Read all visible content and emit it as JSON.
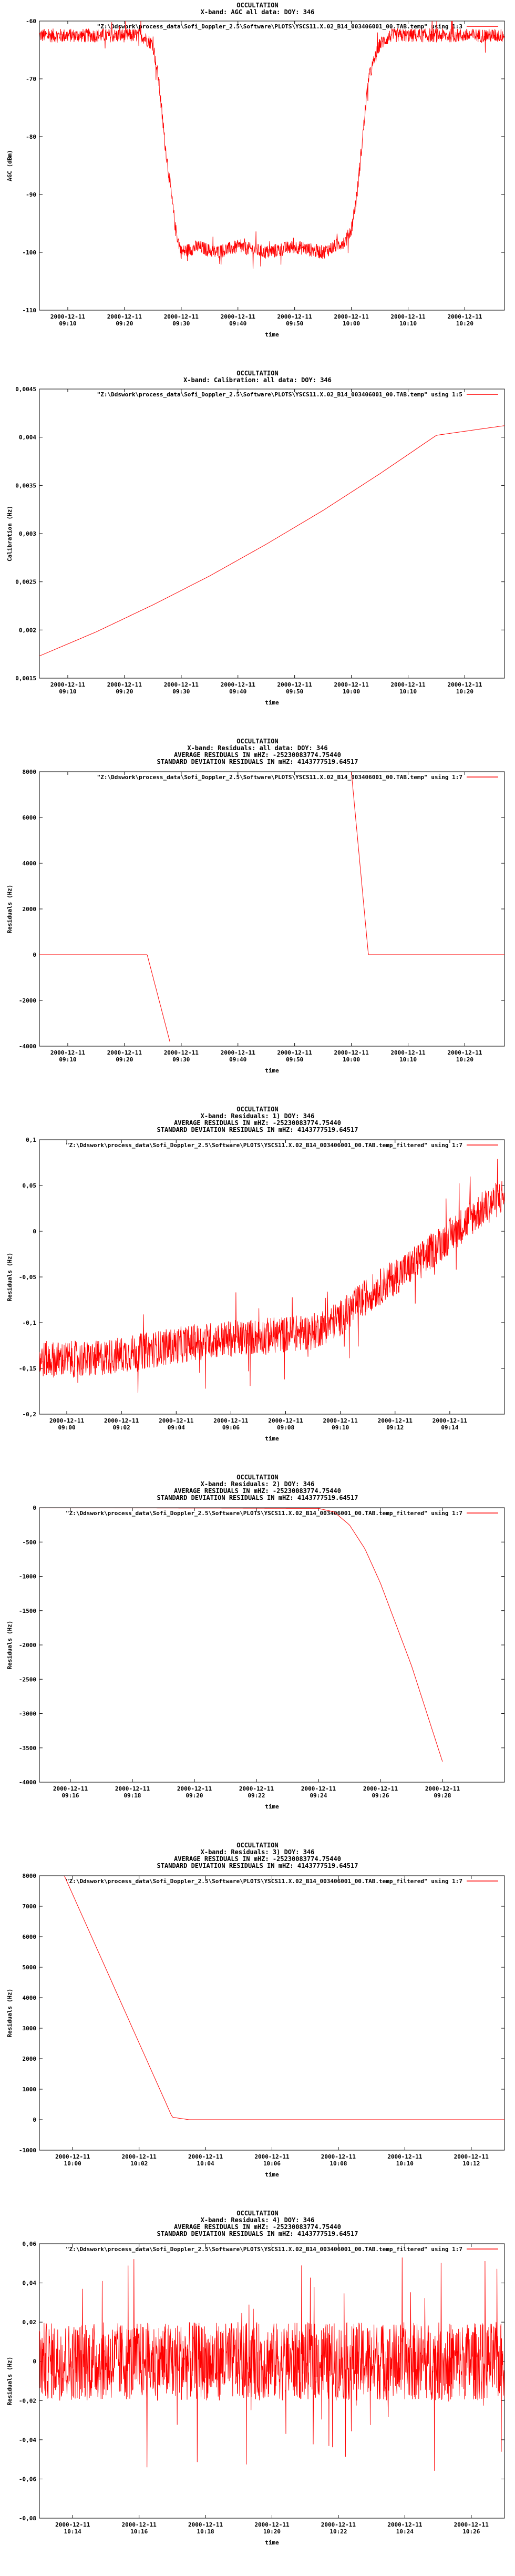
{
  "chart_data": [
    {
      "type": "line",
      "title": [
        "OCCULTATION",
        "X-band: AGC all data: DOY: 346"
      ],
      "legend": "\"Z:\\Ddswork\\process_data\\Sofi_Doppler_2.5\\Software\\PLOTS\\YSCS11.X.02_B14_003406001_00.TAB.temp\" using 1:3",
      "legend_position": "top-right",
      "xlabel": "time",
      "ylabel": "AGC (dBm)",
      "ylim": [
        -110,
        -60
      ],
      "yticks": [
        "-60",
        "-70",
        "-80",
        "-90",
        "-100",
        "-110"
      ],
      "xlim": [
        "2000-12-11 09:05",
        "2000-12-11 10:27"
      ],
      "xticks": [
        {
          "t": "09:10",
          "l1": "2000-12-11",
          "l2": "09:10"
        },
        {
          "t": "09:20",
          "l1": "2000-12-11",
          "l2": "09:20"
        },
        {
          "t": "09:30",
          "l1": "2000-12-11",
          "l2": "09:30"
        },
        {
          "t": "09:40",
          "l1": "2000-12-11",
          "l2": "09:40"
        },
        {
          "t": "09:50",
          "l1": "2000-12-11",
          "l2": "09:50"
        },
        {
          "t": "10:00",
          "l1": "2000-12-11",
          "l2": "10:00"
        },
        {
          "t": "10:10",
          "l1": "2000-12-11",
          "l2": "10:10"
        },
        {
          "t": "10:20",
          "l1": "2000-12-11",
          "l2": "10:20"
        }
      ],
      "series": [
        {
          "x": [
            "09:05",
            "09:23",
            "09:25",
            "09:26",
            "09:27",
            "09:28",
            "09:29",
            "09:30",
            "09:33",
            "09:36",
            "09:40",
            "09:45",
            "09:50",
            "09:55",
            "09:59",
            "10:00",
            "10:01",
            "10:02",
            "10:03",
            "10:05",
            "10:07",
            "10:15",
            "10:27"
          ],
          "y": [
            -62.5,
            -62.5,
            -64,
            -70,
            -80,
            -88,
            -96,
            -100,
            -99,
            -100,
            -99,
            -100,
            -99,
            -100,
            -98,
            -96,
            -90,
            -80,
            -70,
            -64,
            -62.5,
            -62.5,
            -62.5
          ],
          "noise": 1.2
        }
      ],
      "color": "#ff0000"
    },
    {
      "type": "line",
      "title": [
        "OCCULTATION",
        "X-band: Calibration: all data: DOY: 346"
      ],
      "legend": "\"Z:\\Ddswork\\process_data\\Sofi_Doppler_2.5\\Software\\PLOTS\\YSCS11.X.02_B14_003406001_00.TAB.temp\" using 1:5",
      "legend_position": "top-right",
      "xlabel": "time",
      "ylabel": "Calibration (Hz)",
      "ylim": [
        0.0015,
        0.0045
      ],
      "yticks": [
        "0,0045",
        "0,004",
        "0,0035",
        "0,003",
        "0,0025",
        "0,002",
        "0,0015"
      ],
      "xlim": [
        "2000-12-11 09:05",
        "2000-12-11 10:27"
      ],
      "xticks": [
        {
          "t": "09:10",
          "l1": "2000-12-11",
          "l2": "09:10"
        },
        {
          "t": "09:20",
          "l1": "2000-12-11",
          "l2": "09:20"
        },
        {
          "t": "09:30",
          "l1": "2000-12-11",
          "l2": "09:30"
        },
        {
          "t": "09:40",
          "l1": "2000-12-11",
          "l2": "09:40"
        },
        {
          "t": "09:50",
          "l1": "2000-12-11",
          "l2": "09:50"
        },
        {
          "t": "10:00",
          "l1": "2000-12-11",
          "l2": "10:00"
        },
        {
          "t": "10:10",
          "l1": "2000-12-11",
          "l2": "10:10"
        },
        {
          "t": "10:20",
          "l1": "2000-12-11",
          "l2": "10:20"
        }
      ],
      "series": [
        {
          "x": [
            "09:05",
            "09:15",
            "09:25",
            "09:35",
            "09:45",
            "09:55",
            "10:05",
            "10:15",
            "10:27"
          ],
          "y": [
            0.00173,
            0.00198,
            0.00226,
            0.00256,
            0.00289,
            0.00324,
            0.00362,
            0.00402,
            0.00412
          ],
          "noise": 0
        }
      ],
      "color": "#ff0000"
    },
    {
      "type": "line",
      "title": [
        "OCCULTATION",
        "X-band: Residuals: all data: DOY: 346",
        "AVERAGE RESIDUALS IN mHZ: -25230083774.75440",
        "STANDARD DEVIATION RESIDUALS IN mHZ: 4143777519.64517"
      ],
      "legend": "\"Z:\\Ddswork\\process_data\\Sofi_Doppler_2.5\\Software\\PLOTS\\YSCS11.X.02_B14_003406001_00.TAB.temp\" using 1:7",
      "legend_position": "top-right",
      "xlabel": "time",
      "ylabel": "Residuals (Hz)",
      "ylim": [
        -4000,
        8000
      ],
      "yticks": [
        "8000",
        "6000",
        "4000",
        "2000",
        "0",
        "-2000",
        "-4000"
      ],
      "xlim": [
        "2000-12-11 09:05",
        "2000-12-11 10:27"
      ],
      "xticks": [
        {
          "t": "09:10",
          "l1": "2000-12-11",
          "l2": "09:10"
        },
        {
          "t": "09:20",
          "l1": "2000-12-11",
          "l2": "09:20"
        },
        {
          "t": "09:30",
          "l1": "2000-12-11",
          "l2": "09:30"
        },
        {
          "t": "09:40",
          "l1": "2000-12-11",
          "l2": "09:40"
        },
        {
          "t": "09:50",
          "l1": "2000-12-11",
          "l2": "09:50"
        },
        {
          "t": "10:00",
          "l1": "2000-12-11",
          "l2": "10:00"
        },
        {
          "t": "10:10",
          "l1": "2000-12-11",
          "l2": "10:10"
        },
        {
          "t": "10:20",
          "l1": "2000-12-11",
          "l2": "10:20"
        }
      ],
      "series": [
        {
          "x": [
            "09:05",
            "09:24",
            "09:28"
          ],
          "y": [
            0,
            0,
            -3800
          ],
          "noise": 0
        },
        {
          "x": [
            "10:00",
            "10:03",
            "10:27"
          ],
          "y": [
            8000,
            0,
            0
          ],
          "noise": 0
        }
      ],
      "color": "#ff0000"
    },
    {
      "type": "line",
      "title": [
        "OCCULTATION",
        "X-band: Residuals: 1) DOY: 346",
        "AVERAGE RESIDUALS IN mHZ: -25230083774.75440",
        "STANDARD DEVIATION RESIDUALS IN mHZ: 4143777519.64517"
      ],
      "legend": "\"Z:\\Ddswork\\process_data\\Sofi_Doppler_2.5\\Software\\PLOTS\\YSCS11.X.02_B14_003406001_00.TAB.temp_filtered\" using 1:7",
      "legend_position": "top-right",
      "xlabel": "time",
      "ylabel": "Residuals (Hz)",
      "ylim": [
        -0.2,
        0.1
      ],
      "yticks": [
        "0,1",
        "0,05",
        "0",
        "-0,05",
        "-0,1",
        "-0,15",
        "-0,2"
      ],
      "xlim": [
        "2000-12-11 08:59",
        "2000-12-11 09:16"
      ],
      "xticks": [
        {
          "t": "09:00",
          "l1": "2000-12-11",
          "l2": "09:00"
        },
        {
          "t": "09:02",
          "l1": "2000-12-11",
          "l2": "09:02"
        },
        {
          "t": "09:04",
          "l1": "2000-12-11",
          "l2": "09:04"
        },
        {
          "t": "09:06",
          "l1": "2000-12-11",
          "l2": "09:06"
        },
        {
          "t": "09:08",
          "l1": "2000-12-11",
          "l2": "09:08"
        },
        {
          "t": "09:10",
          "l1": "2000-12-11",
          "l2": "09:10"
        },
        {
          "t": "09:12",
          "l1": "2000-12-11",
          "l2": "09:12"
        },
        {
          "t": "09:14",
          "l1": "2000-12-11",
          "l2": "09:14"
        }
      ],
      "series": [
        {
          "x": [
            "08:59",
            "09:01",
            "09:03",
            "09:05",
            "09:07",
            "09:09",
            "09:10",
            "09:11",
            "09:12",
            "09:13",
            "09:14",
            "09:15",
            "09:16"
          ],
          "y": [
            -0.14,
            -0.14,
            -0.13,
            -0.12,
            -0.115,
            -0.11,
            -0.095,
            -0.07,
            -0.05,
            -0.03,
            -0.005,
            0.02,
            0.04
          ],
          "noise": 0.02
        }
      ],
      "color": "#ff0000"
    },
    {
      "type": "line",
      "title": [
        "OCCULTATION",
        "X-band: Residuals: 2) DOY: 346",
        "AVERAGE RESIDUALS IN mHZ: -25230083774.75440",
        "STANDARD DEVIATION RESIDUALS IN mHZ: 4143777519.64517"
      ],
      "legend": "\"Z:\\Ddswork\\process_data\\Sofi_Doppler_2.5\\Software\\PLOTS\\YSCS11.X.02_B14_003406001_00.TAB.temp_filtered\" using 1:7",
      "legend_position": "top-right",
      "xlabel": "time",
      "ylabel": "Residuals (Hz)",
      "ylim": [
        -4000,
        0
      ],
      "yticks": [
        "0",
        "-500",
        "-1000",
        "-1500",
        "-2000",
        "-2500",
        "-3000",
        "-3500",
        "-4000"
      ],
      "xlim": [
        "2000-12-11 09:15",
        "2000-12-11 09:30"
      ],
      "xticks": [
        {
          "t": "09:16",
          "l1": "2000-12-11",
          "l2": "09:16"
        },
        {
          "t": "09:18",
          "l1": "2000-12-11",
          "l2": "09:18"
        },
        {
          "t": "09:20",
          "l1": "2000-12-11",
          "l2": "09:20"
        },
        {
          "t": "09:22",
          "l1": "2000-12-11",
          "l2": "09:22"
        },
        {
          "t": "09:24",
          "l1": "2000-12-11",
          "l2": "09:24"
        },
        {
          "t": "09:26",
          "l1": "2000-12-11",
          "l2": "09:26"
        },
        {
          "t": "09:28",
          "l1": "2000-12-11",
          "l2": "09:28"
        }
      ],
      "series": [
        {
          "x": [
            "09:15",
            "09:24",
            "09:24:30",
            "09:25",
            "09:25:30",
            "09:26",
            "09:27",
            "09:28"
          ],
          "y": [
            0,
            -10,
            -60,
            -250,
            -600,
            -1100,
            -2300,
            -3700
          ],
          "noise": 0
        }
      ],
      "color": "#ff0000"
    },
    {
      "type": "line",
      "title": [
        "OCCULTATION",
        "X-band: Residuals: 3) DOY: 346",
        "AVERAGE RESIDUALS IN mHZ: -25230083774.75440",
        "STANDARD DEVIATION RESIDUALS IN mHZ: 4143777519.64517"
      ],
      "legend": "\"Z:\\Ddswork\\process_data\\Sofi_Doppler_2.5\\Software\\PLOTS\\YSCS11.X.02_B14_003406001_00.TAB.temp_filtered\" using 1:7",
      "legend_position": "top-right",
      "xlabel": "time",
      "ylabel": "Residuals (Hz)",
      "ylim": [
        -1000,
        8000
      ],
      "yticks": [
        "8000",
        "7000",
        "6000",
        "5000",
        "4000",
        "3000",
        "2000",
        "1000",
        "0",
        "-1000"
      ],
      "xlim": [
        "2000-12-11 09:59",
        "2000-12-11 10:13"
      ],
      "xticks": [
        {
          "t": "10:00",
          "l1": "2000-12-11",
          "l2": "10:00"
        },
        {
          "t": "10:02",
          "l1": "2000-12-11",
          "l2": "10:02"
        },
        {
          "t": "10:04",
          "l1": "2000-12-11",
          "l2": "10:04"
        },
        {
          "t": "10:06",
          "l1": "2000-12-11",
          "l2": "10:06"
        },
        {
          "t": "10:08",
          "l1": "2000-12-11",
          "l2": "10:08"
        },
        {
          "t": "10:10",
          "l1": "2000-12-11",
          "l2": "10:10"
        },
        {
          "t": "10:12",
          "l1": "2000-12-11",
          "l2": "10:12"
        }
      ],
      "series": [
        {
          "x": [
            "09:59:45",
            "10:03",
            "10:03:30",
            "10:13"
          ],
          "y": [
            8000,
            80,
            0,
            0
          ],
          "noise": 0
        }
      ],
      "color": "#ff0000"
    },
    {
      "type": "line",
      "title": [
        "OCCULTATION",
        "X-band: Residuals: 4) DOY: 346",
        "AVERAGE RESIDUALS IN mHZ: -25230083774.75440",
        "STANDARD DEVIATION RESIDUALS IN mHZ: 4143777519.64517"
      ],
      "legend": "\"Z:\\Ddswork\\process_data\\Sofi_Doppler_2.5\\Software\\PLOTS\\YSCS11.X.02_B14_003406001_00.TAB.temp_filtered\" using 1:7",
      "legend_position": "top-right",
      "xlabel": "time",
      "ylabel": "Residuals (Hz)",
      "ylim": [
        -0.08,
        0.06
      ],
      "yticks": [
        "0,06",
        "0,04",
        "0,02",
        "0",
        "-0,02",
        "-0,04",
        "-0,06",
        "-0,08"
      ],
      "xlim": [
        "2000-12-11 10:13",
        "2000-12-11 10:27"
      ],
      "xticks": [
        {
          "t": "10:14",
          "l1": "2000-12-11",
          "l2": "10:14"
        },
        {
          "t": "10:16",
          "l1": "2000-12-11",
          "l2": "10:16"
        },
        {
          "t": "10:18",
          "l1": "2000-12-11",
          "l2": "10:18"
        },
        {
          "t": "10:20",
          "l1": "2000-12-11",
          "l2": "10:20"
        },
        {
          "t": "10:22",
          "l1": "2000-12-11",
          "l2": "10:22"
        },
        {
          "t": "10:24",
          "l1": "2000-12-11",
          "l2": "10:24"
        },
        {
          "t": "10:26",
          "l1": "2000-12-11",
          "l2": "10:26"
        }
      ],
      "series": [
        {
          "x": [
            "10:13",
            "10:27"
          ],
          "y": [
            0,
            0
          ],
          "noise": 0.02
        }
      ],
      "color": "#ff0000"
    }
  ]
}
